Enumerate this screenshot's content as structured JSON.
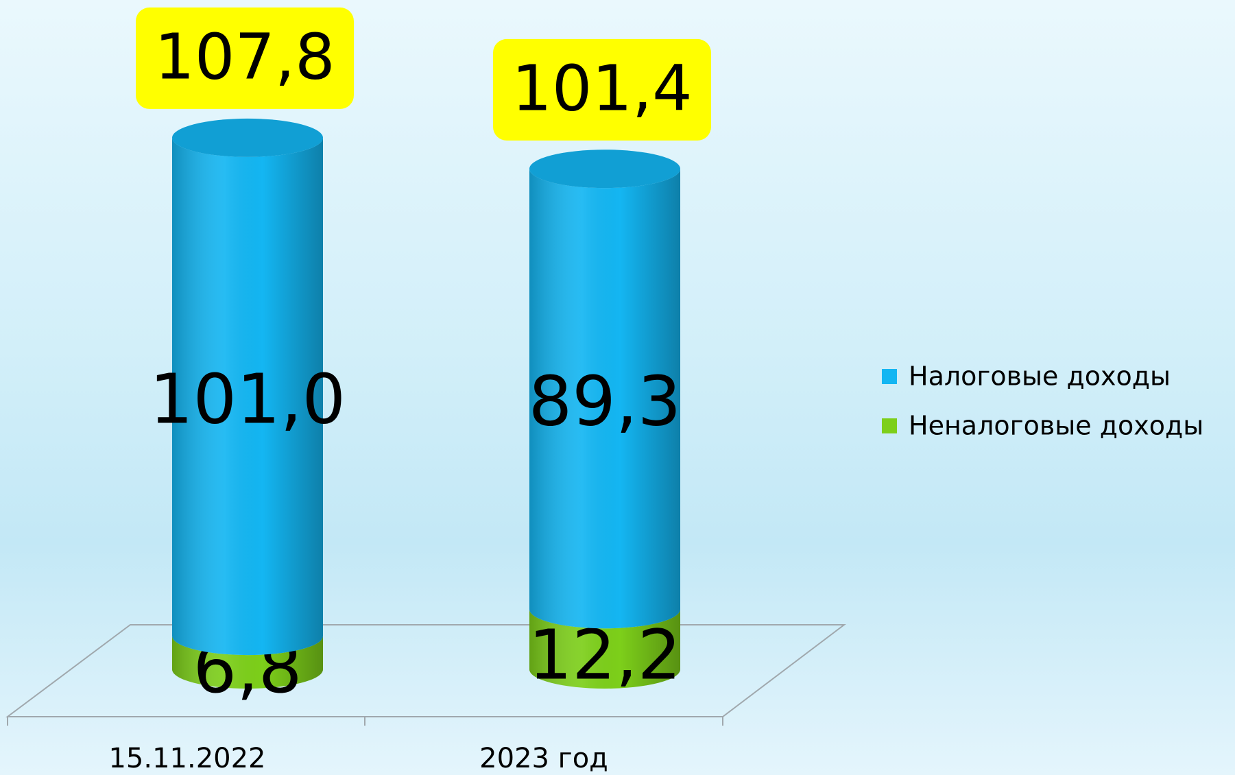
{
  "chart_data": {
    "type": "cylinder-stacked-bar",
    "categories": [
      "15.11.2022",
      "2023 год"
    ],
    "series": [
      {
        "name": "Налоговые доходы",
        "color": "#14b6f2",
        "values": [
          101.0,
          89.3
        ],
        "value_labels": [
          "101,0",
          "89,3"
        ]
      },
      {
        "name": "Неналоговые доходы",
        "color": "#7dcf1a",
        "values": [
          6.8,
          12.2
        ],
        "value_labels": [
          "6,8",
          "12,2"
        ]
      }
    ],
    "totals": [
      107.8,
      101.4
    ],
    "total_labels": [
      "107,8",
      "101,4"
    ],
    "total_label_color": "#ffff00",
    "legend": "right"
  }
}
